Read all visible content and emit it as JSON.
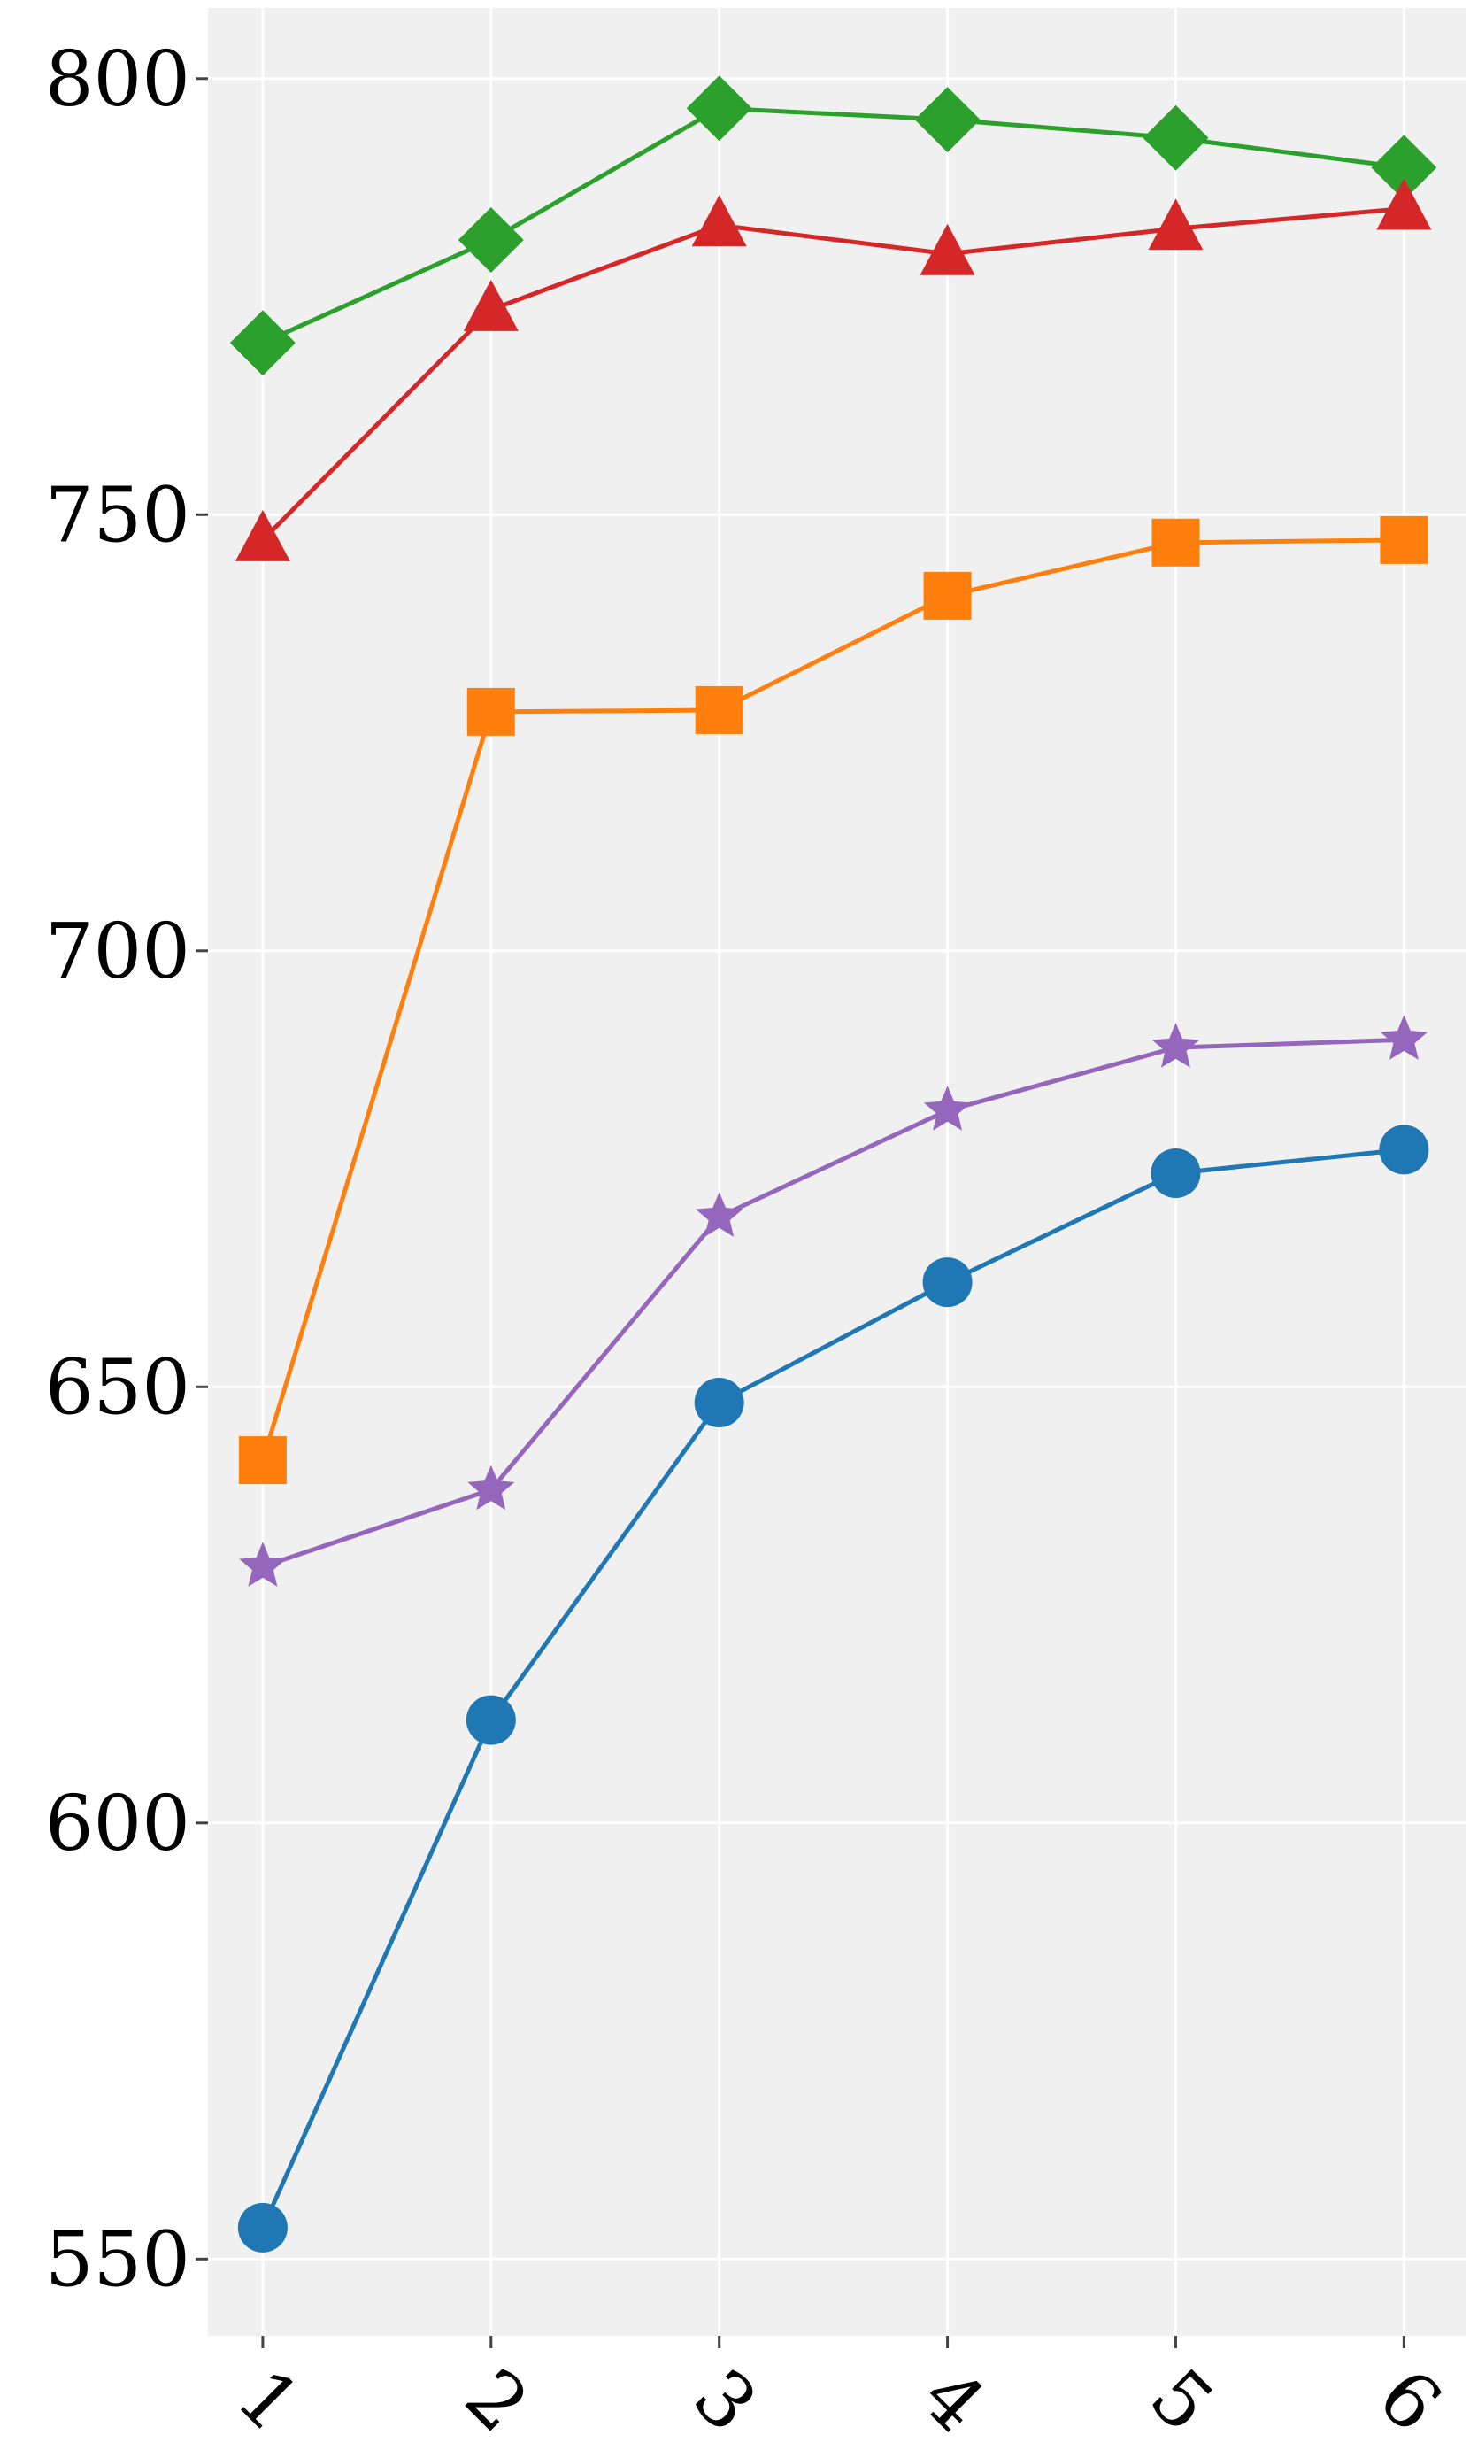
{
  "chart_data": {
    "type": "line",
    "x": [
      1,
      2,
      3,
      4,
      5,
      6
    ],
    "xlim": [
      0.76,
      6.27
    ],
    "xticks": [
      1,
      2,
      3,
      4,
      5,
      6
    ],
    "ylim": [
      541.2,
      808.1
    ],
    "yticks": [
      550,
      600,
      650,
      700,
      750,
      800
    ],
    "grid": true,
    "series": [
      {
        "color": "#1f77b4",
        "marker": "circle",
        "values": [
          553.6,
          611.8,
          648.2,
          662.0,
          674.5,
          677.2
        ]
      },
      {
        "color": "#ff7f0e",
        "marker": "square",
        "values": [
          641.6,
          727.4,
          727.6,
          740.7,
          746.8,
          747.1
        ]
      },
      {
        "color": "#2ca02c",
        "marker": "diamond",
        "values": [
          769.7,
          781.5,
          796.6,
          795.3,
          793.2,
          789.8
        ]
      },
      {
        "color": "#d62728",
        "marker": "triangle",
        "values": [
          747.1,
          773.5,
          783.2,
          779.9,
          782.8,
          785.1
        ]
      },
      {
        "color": "#9467bd",
        "marker": "star",
        "values": [
          629.4,
          638.2,
          669.5,
          681.7,
          688.9,
          689.8
        ]
      }
    ]
  }
}
